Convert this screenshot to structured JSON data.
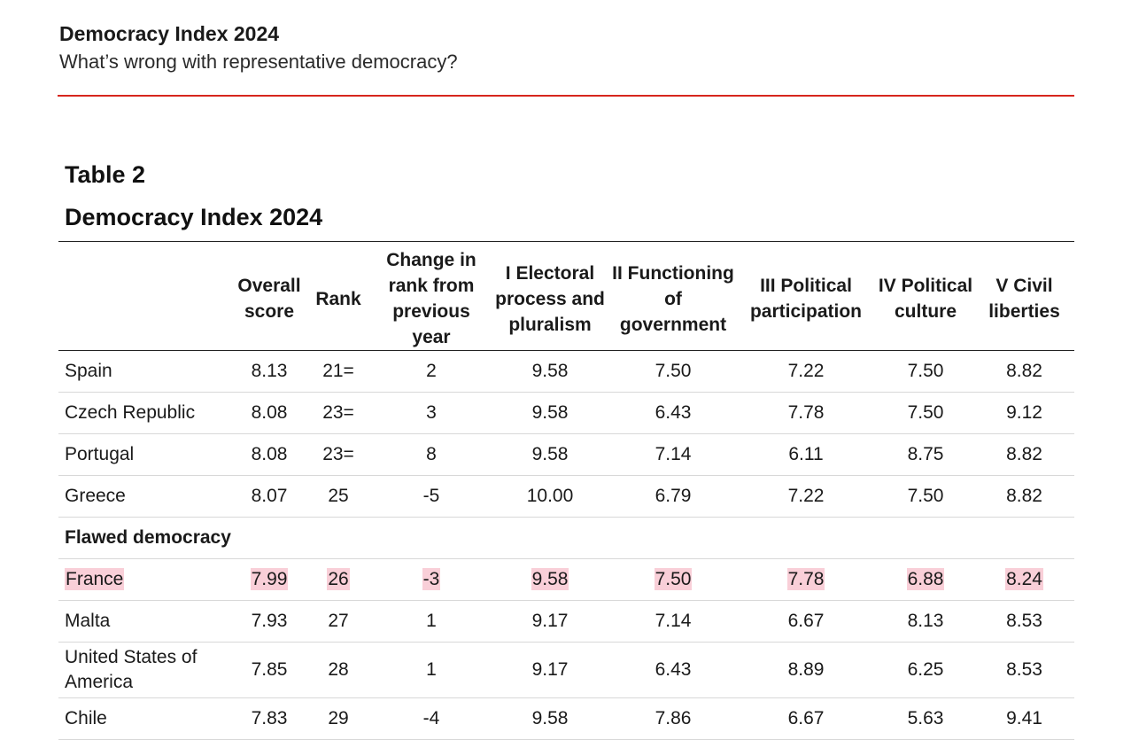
{
  "header": {
    "title": "Democracy Index 2024",
    "subtitle": "What’s wrong with representative democracy?"
  },
  "table": {
    "label": "Table 2",
    "title": "Democracy Index 2024",
    "columns": [
      "",
      "Overall score",
      "Rank",
      "Change in rank from previous year",
      "I Electoral process and pluralism",
      "II Functioning of government",
      "III Political participation",
      "IV Political culture",
      "V Civil liberties"
    ],
    "rows": [
      {
        "country": "Spain",
        "values": [
          "8.13",
          "21=",
          "2",
          "9.58",
          "7.50",
          "7.22",
          "7.50",
          "8.82"
        ]
      },
      {
        "country": "Czech Republic",
        "values": [
          "8.08",
          "23=",
          "3",
          "9.58",
          "6.43",
          "7.78",
          "7.50",
          "9.12"
        ]
      },
      {
        "country": "Portugal",
        "values": [
          "8.08",
          "23=",
          "8",
          "9.58",
          "7.14",
          "6.11",
          "8.75",
          "8.82"
        ]
      },
      {
        "country": "Greece",
        "values": [
          "8.07",
          "25",
          "-5",
          "10.00",
          "6.79",
          "7.22",
          "7.50",
          "8.82"
        ]
      }
    ],
    "section_label": "Flawed democracy",
    "rows_after": [
      {
        "country": "France",
        "highlighted": true,
        "values": [
          "7.99",
          "26",
          "-3",
          "9.58",
          "7.50",
          "7.78",
          "6.88",
          "8.24"
        ]
      },
      {
        "country": "Malta",
        "values": [
          "7.93",
          "27",
          "1",
          "9.17",
          "7.14",
          "6.67",
          "8.13",
          "8.53"
        ]
      },
      {
        "country": "United States of America",
        "values": [
          "7.85",
          "28",
          "1",
          "9.17",
          "6.43",
          "8.89",
          "6.25",
          "8.53"
        ]
      },
      {
        "country": "Chile",
        "values": [
          "7.83",
          "29",
          "-4",
          "9.58",
          "7.86",
          "6.67",
          "5.63",
          "9.41"
        ]
      }
    ]
  },
  "colors": {
    "accent_rule": "#d7261e",
    "highlight": "#f9cfd8"
  }
}
